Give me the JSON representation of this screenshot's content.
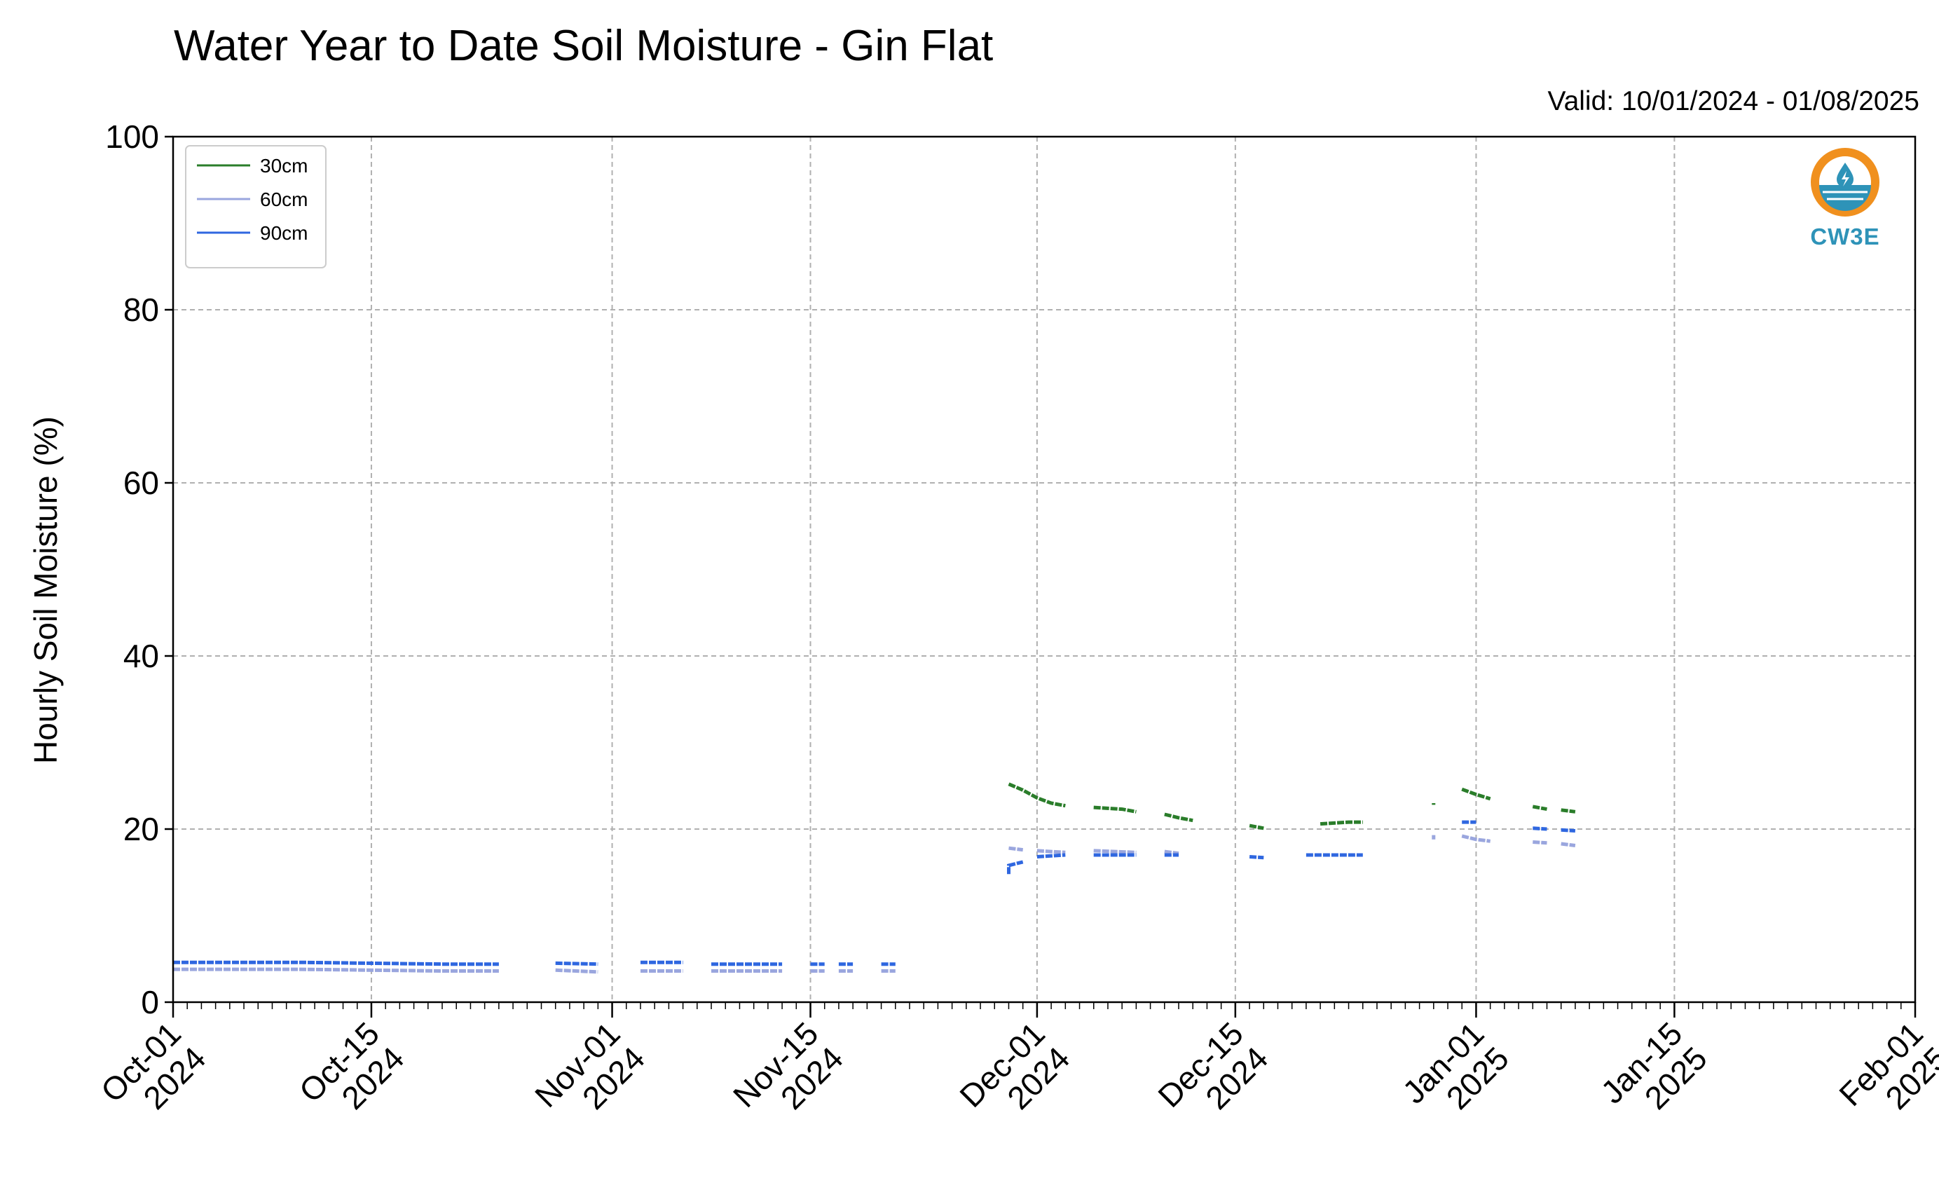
{
  "title": "Water Year to Date Soil Moisture - Gin Flat",
  "valid_label": "Valid: 10/01/2024 - 01/08/2025",
  "logo": {
    "name": "cw3e-logo",
    "text": "CW3E",
    "ring_color": "#f0901e",
    "water_color": "#2e93b8"
  },
  "chart_data": {
    "type": "line",
    "title": "Water Year to Date Soil Moisture - Gin Flat",
    "ylabel": "Hourly Soil Moisture (%)",
    "xlabel": "",
    "xlim": [
      "2024-10-01",
      "2025-02-01"
    ],
    "ylim": [
      0,
      100
    ],
    "yticks": [
      0,
      20,
      40,
      60,
      80,
      100
    ],
    "xticks": [
      {
        "date": "2024-10-01",
        "label": [
          "Oct-01",
          "2024"
        ]
      },
      {
        "date": "2024-10-15",
        "label": [
          "Oct-15",
          "2024"
        ]
      },
      {
        "date": "2024-11-01",
        "label": [
          "Nov-01",
          "2024"
        ]
      },
      {
        "date": "2024-11-15",
        "label": [
          "Nov-15",
          "2024"
        ]
      },
      {
        "date": "2024-12-01",
        "label": [
          "Dec-01",
          "2024"
        ]
      },
      {
        "date": "2024-12-15",
        "label": [
          "Dec-15",
          "2024"
        ]
      },
      {
        "date": "2025-01-01",
        "label": [
          "Jan-01",
          "2025"
        ]
      },
      {
        "date": "2025-01-15",
        "label": [
          "Jan-15",
          "2025"
        ]
      },
      {
        "date": "2025-02-01",
        "label": [
          "Feb-01",
          "2025"
        ]
      }
    ],
    "grid": true,
    "legend": "top-left",
    "series": [
      {
        "name": "30cm",
        "color": "#2a7d2a",
        "segments": [
          [
            [
              "2024-11-29",
              25.2
            ],
            [
              "2024-11-30",
              24.5
            ],
            [
              "2024-12-01",
              23.6
            ],
            [
              "2024-12-02",
              23.0
            ],
            [
              "2024-12-03",
              22.7
            ]
          ],
          [
            [
              "2024-12-05",
              22.5
            ],
            [
              "2024-12-07",
              22.3
            ],
            [
              "2024-12-08",
              22.0
            ]
          ],
          [
            [
              "2024-12-10",
              21.7
            ],
            [
              "2024-12-11",
              21.3
            ],
            [
              "2024-12-12",
              21.0
            ]
          ],
          [
            [
              "2024-12-16",
              20.4
            ],
            [
              "2024-12-17",
              20.1
            ]
          ],
          [
            [
              "2024-12-21",
              20.6
            ],
            [
              "2024-12-23",
              20.8
            ],
            [
              "2024-12-24",
              20.8
            ]
          ],
          [
            [
              "2024-12-29",
              23.0
            ],
            [
              "2024-12-29",
              22.8
            ]
          ],
          [
            [
              "2024-12-31",
              24.6
            ],
            [
              "2025-01-01",
              24.0
            ],
            [
              "2025-01-02",
              23.5
            ]
          ],
          [
            [
              "2025-01-05",
              22.6
            ],
            [
              "2025-01-06",
              22.3
            ]
          ],
          [
            [
              "2025-01-07",
              22.2
            ],
            [
              "2025-01-08",
              22.0
            ]
          ]
        ]
      },
      {
        "name": "60cm",
        "color": "#9aa6de",
        "segments": [
          [
            [
              "2024-10-01",
              3.8
            ],
            [
              "2024-10-10",
              3.8
            ],
            [
              "2024-10-20",
              3.6
            ],
            [
              "2024-10-24",
              3.6
            ]
          ],
          [
            [
              "2024-10-28",
              3.7
            ],
            [
              "2024-10-31",
              3.5
            ]
          ],
          [
            [
              "2024-11-03",
              3.6
            ],
            [
              "2024-11-06",
              3.6
            ]
          ],
          [
            [
              "2024-11-08",
              3.6
            ],
            [
              "2024-11-13",
              3.6
            ]
          ],
          [
            [
              "2024-11-15",
              3.6
            ],
            [
              "2024-11-16",
              3.6
            ]
          ],
          [
            [
              "2024-11-17",
              3.6
            ],
            [
              "2024-11-18",
              3.6
            ]
          ],
          [
            [
              "2024-11-20",
              3.6
            ],
            [
              "2024-11-21",
              3.6
            ]
          ],
          [
            [
              "2024-11-29",
              17.8
            ],
            [
              "2024-11-30",
              17.6
            ]
          ],
          [
            [
              "2024-12-01",
              17.5
            ],
            [
              "2024-12-03",
              17.3
            ]
          ],
          [
            [
              "2024-12-05",
              17.5
            ],
            [
              "2024-12-08",
              17.3
            ]
          ],
          [
            [
              "2024-12-10",
              17.4
            ],
            [
              "2024-12-11",
              17.2
            ]
          ],
          [
            [
              "2024-12-29",
              19.3
            ],
            [
              "2024-12-29",
              18.8
            ]
          ],
          [
            [
              "2024-12-31",
              19.2
            ],
            [
              "2025-01-01",
              18.8
            ],
            [
              "2025-01-02",
              18.6
            ]
          ],
          [
            [
              "2025-01-05",
              18.5
            ],
            [
              "2025-01-06",
              18.4
            ]
          ],
          [
            [
              "2025-01-07",
              18.3
            ],
            [
              "2025-01-08",
              18.1
            ]
          ]
        ]
      },
      {
        "name": "90cm",
        "color": "#2f67e0",
        "segments": [
          [
            [
              "2024-10-01",
              4.6
            ],
            [
              "2024-10-10",
              4.6
            ],
            [
              "2024-10-20",
              4.4
            ],
            [
              "2024-10-24",
              4.4
            ]
          ],
          [
            [
              "2024-10-28",
              4.5
            ],
            [
              "2024-10-31",
              4.4
            ]
          ],
          [
            [
              "2024-11-03",
              4.6
            ],
            [
              "2024-11-06",
              4.6
            ]
          ],
          [
            [
              "2024-11-08",
              4.4
            ],
            [
              "2024-11-13",
              4.4
            ]
          ],
          [
            [
              "2024-11-15",
              4.4
            ],
            [
              "2024-11-16",
              4.4
            ]
          ],
          [
            [
              "2024-11-17",
              4.4
            ],
            [
              "2024-11-18",
              4.4
            ]
          ],
          [
            [
              "2024-11-20",
              4.4
            ],
            [
              "2024-11-21",
              4.4
            ]
          ],
          [
            [
              "2024-11-29",
              14.8
            ],
            [
              "2024-11-29",
              15.8
            ],
            [
              "2024-11-30",
              16.2
            ]
          ],
          [
            [
              "2024-12-01",
              16.8
            ],
            [
              "2024-12-03",
              17.0
            ]
          ],
          [
            [
              "2024-12-05",
              17.0
            ],
            [
              "2024-12-08",
              17.0
            ]
          ],
          [
            [
              "2024-12-10",
              17.0
            ],
            [
              "2024-12-11",
              17.0
            ]
          ],
          [
            [
              "2024-12-16",
              16.8
            ],
            [
              "2024-12-17",
              16.7
            ]
          ],
          [
            [
              "2024-12-20",
              17.0
            ],
            [
              "2024-12-24",
              17.0
            ]
          ],
          [
            [
              "2024-12-31",
              20.8
            ],
            [
              "2025-01-01",
              20.8
            ]
          ],
          [
            [
              "2025-01-05",
              20.1
            ],
            [
              "2025-01-06",
              20.0
            ]
          ],
          [
            [
              "2025-01-07",
              19.9
            ],
            [
              "2025-01-08",
              19.8
            ]
          ]
        ]
      }
    ]
  }
}
